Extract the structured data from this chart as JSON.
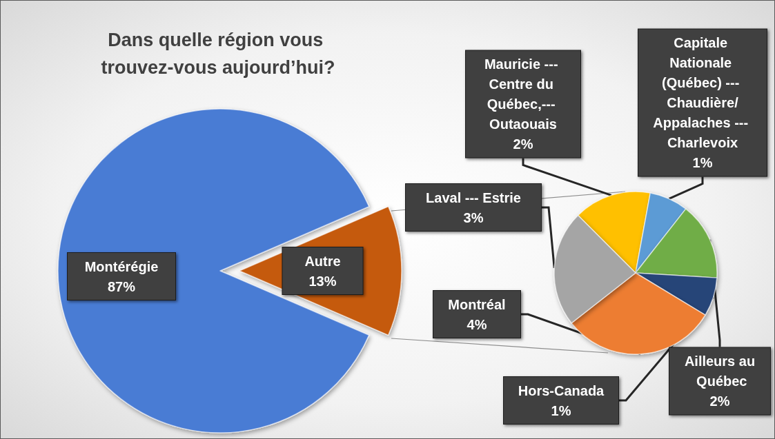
{
  "chart_data": [
    {
      "type": "pie",
      "title": "Dans quelle région vous trouvez-vous aujourd’hui?",
      "categories": [
        "Montérégie",
        "Autre"
      ],
      "values": [
        87,
        13
      ],
      "value_labels": [
        "87%",
        "13%"
      ],
      "colors": [
        "#4a7bd4",
        "#c55a11"
      ]
    },
    {
      "type": "pie",
      "categories": [
        "Mauricie --- Centre du Québec,--- Outaouais",
        "Capitale Nationale (Québec) --- Chaudière/Appalaches --- Charlevoix",
        "Ailleurs au Québec",
        "Hors-Canada",
        "Montréal",
        "Laval --- Estrie"
      ],
      "values": [
        2,
        1,
        2,
        1,
        4,
        3
      ],
      "value_labels": [
        "2%",
        "1%",
        "2%",
        "1%",
        "4%",
        "3%"
      ],
      "colors": [
        "#ffc000",
        "#5b9bd5",
        "#70ad47",
        "#264478",
        "#ed7d31",
        "#a5a5a5"
      ]
    }
  ]
}
